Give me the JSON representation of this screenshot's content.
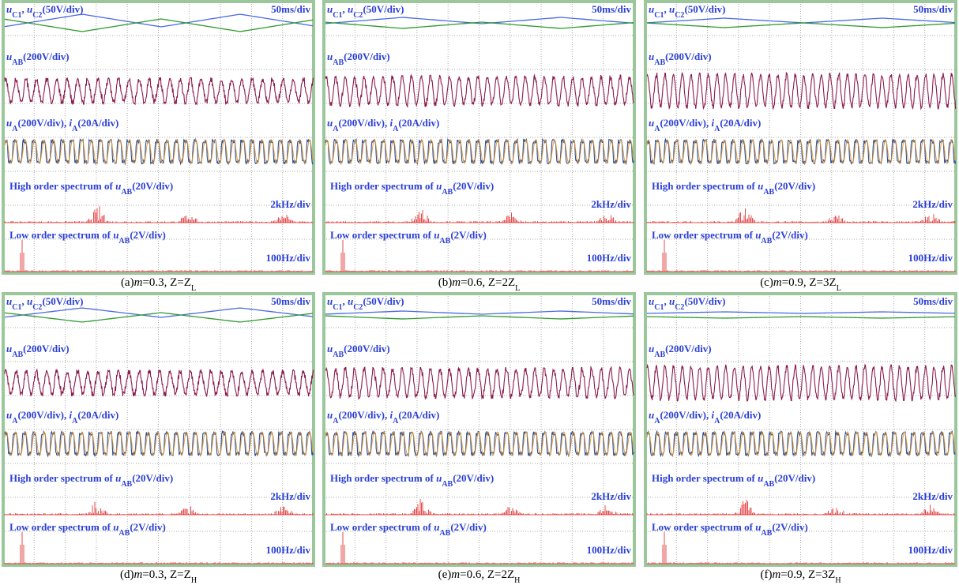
{
  "labels": {
    "capacitor_voltages": [
      "u",
      "C1",
      ", ",
      "u",
      "C2",
      "(50V/div)"
    ],
    "time_scale": "50ms/div",
    "line_voltage": [
      "u",
      "AB",
      "(200V/div)"
    ],
    "phase": [
      "u",
      "A",
      "(200V/div), ",
      "i",
      "A",
      "(20A/div)"
    ],
    "high_spectrum": [
      "High order spectrum of ",
      "u",
      "AB",
      "(20V/div)"
    ],
    "high_scale": "2kHz/div",
    "low_spectrum": [
      "Low order spectrum of ",
      "u",
      "AB",
      "(2V/div)"
    ],
    "low_scale": "100Hz/div"
  },
  "panels": [
    {
      "caption": [
        "(a)",
        "m",
        "=0.3, Z=",
        "Z",
        "L"
      ]
    },
    {
      "caption": [
        "(b)",
        "m",
        "=0.6, Z=2",
        "Z",
        "L"
      ]
    },
    {
      "caption": [
        "(c)",
        "m",
        "=0.9, Z=3",
        "Z",
        "L"
      ]
    },
    {
      "caption": [
        "(d)",
        "m",
        "=0.3, Z=",
        "Z",
        "H"
      ]
    },
    {
      "caption": [
        "(e)",
        "m",
        "=0.6, Z=2",
        "Z",
        "H"
      ]
    },
    {
      "caption": [
        "(f)",
        "m",
        "=0.9, Z=3",
        "Z",
        "H"
      ]
    }
  ]
}
